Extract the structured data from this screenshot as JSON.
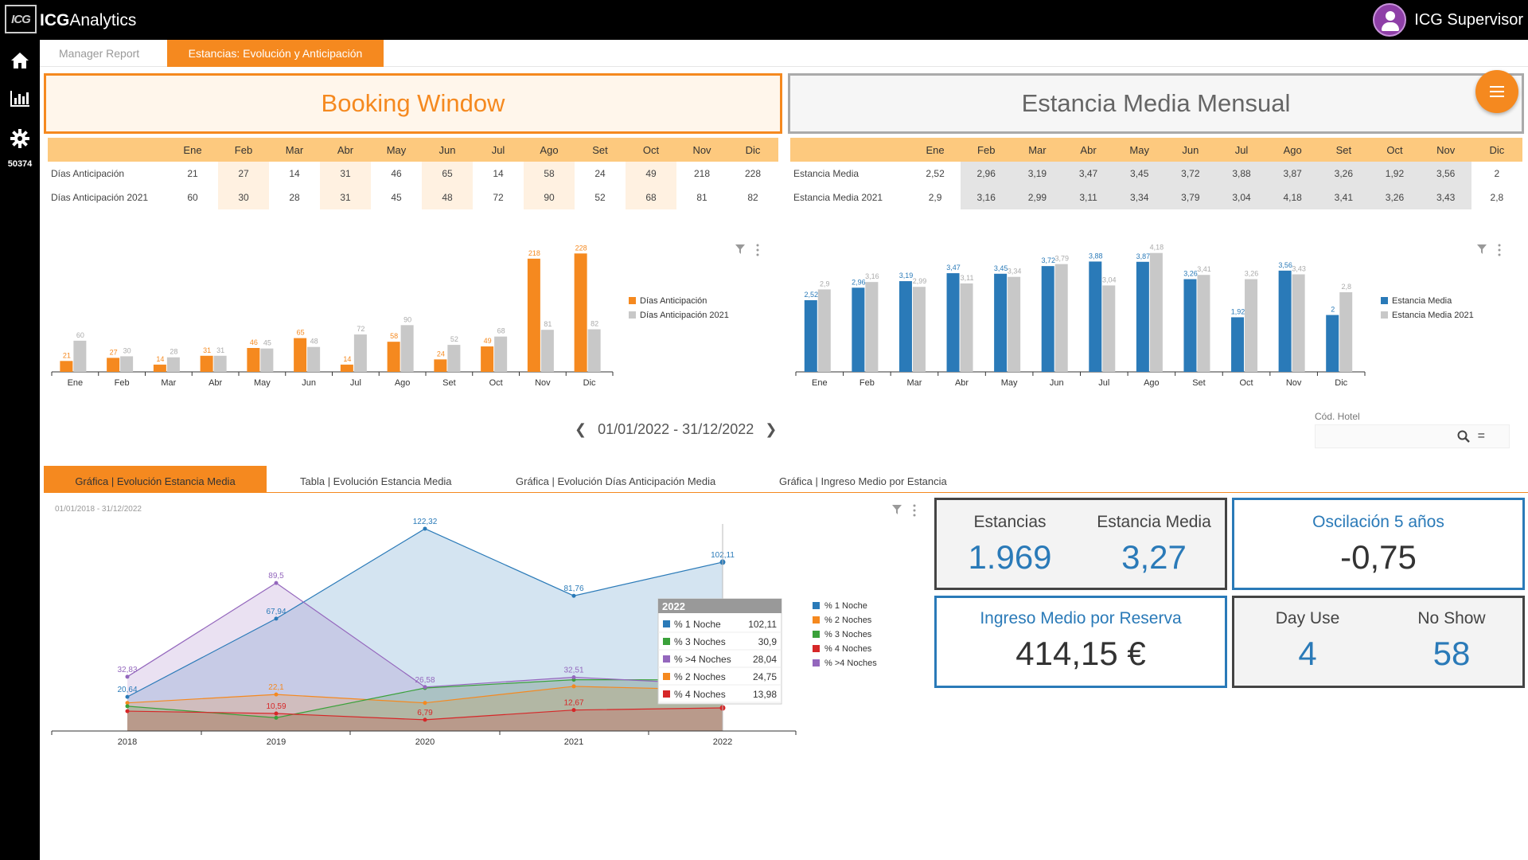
{
  "app": {
    "logo_text": "ICG",
    "title_bold": "ICG",
    "title_rest": "Analytics",
    "user": "ICG Supervisor",
    "side_number": "50374"
  },
  "tabs": [
    "Manager Report",
    "Estancias: Evolución y Anticipación"
  ],
  "booking_window": {
    "title": "Booking Window",
    "months": [
      "Ene",
      "Feb",
      "Mar",
      "Abr",
      "May",
      "Jun",
      "Jul",
      "Ago",
      "Set",
      "Oct",
      "Nov",
      "Dic"
    ],
    "rows": [
      {
        "label": "Días Anticipación",
        "values": [
          "21",
          "27",
          "14",
          "31",
          "46",
          "65",
          "14",
          "58",
          "24",
          "49",
          "218",
          "228"
        ]
      },
      {
        "label": "Días Anticipación 2021",
        "values": [
          "60",
          "30",
          "28",
          "31",
          "45",
          "48",
          "72",
          "90",
          "52",
          "68",
          "81",
          "82"
        ]
      }
    ]
  },
  "estancia_media": {
    "title": "Estancia Media Mensual",
    "months": [
      "Ene",
      "Feb",
      "Mar",
      "Abr",
      "May",
      "Jun",
      "Jul",
      "Ago",
      "Set",
      "Oct",
      "Nov",
      "Dic"
    ],
    "rows": [
      {
        "label": "Estancia Media",
        "values": [
          "2,52",
          "2,96",
          "3,19",
          "3,47",
          "3,45",
          "3,72",
          "3,88",
          "3,87",
          "3,26",
          "1,92",
          "3,56",
          "2"
        ]
      },
      {
        "label": "Estancia Media 2021",
        "values": [
          "2,9",
          "3,16",
          "2,99",
          "3,11",
          "3,34",
          "3,79",
          "3,04",
          "4,18",
          "3,41",
          "3,26",
          "3,43",
          "2,8"
        ]
      }
    ]
  },
  "date_range": "01/01/2022 - 31/12/2022",
  "cod_hotel": {
    "label": "Cód. Hotel",
    "eq": "="
  },
  "lower_tabs": [
    "Gráfica | Evolución Estancia Media",
    "Tabla | Evolución Estancia Media",
    "Gráfica | Evolución Días Anticipación Media",
    "Gráfica | Ingreso Medio por Estancia"
  ],
  "area_chart_range": "01/01/2018 - 31/12/2022",
  "tooltip": {
    "title": "2022",
    "rows": [
      {
        "label": "% 1 Noche",
        "value": "102,11",
        "color": "#2a7ab8"
      },
      {
        "label": "% 3 Noches",
        "value": "30,9",
        "color": "#3aa13a"
      },
      {
        "label": "% >4 Noches",
        "value": "28,04",
        "color": "#9467bd"
      },
      {
        "label": "% 2 Noches",
        "value": "24,75",
        "color": "#f5891f"
      },
      {
        "label": "% 4 Noches",
        "value": "13,98",
        "color": "#d62728"
      }
    ]
  },
  "kpis": {
    "estancias_label": "Estancias",
    "estancias_value": "1.969",
    "estancia_media_label": "Estancia Media",
    "estancia_media_value": "3,27",
    "oscilacion_label": "Oscilación 5 años",
    "oscilacion_value": "-0,75",
    "ingreso_label": "Ingreso Medio por Reserva",
    "ingreso_value": "414,15 €",
    "dayuse_label": "Day Use",
    "dayuse_value": "4",
    "noshow_label": "No Show",
    "noshow_value": "58"
  },
  "chart_data": [
    {
      "type": "bar",
      "categories": [
        "Ene",
        "Feb",
        "Mar",
        "Abr",
        "May",
        "Jun",
        "Jul",
        "Ago",
        "Set",
        "Oct",
        "Nov",
        "Dic"
      ],
      "series": [
        {
          "name": "Días Anticipación",
          "color": "#f5891f",
          "values": [
            21,
            27,
            14,
            31,
            46,
            65,
            14,
            58,
            24,
            49,
            218,
            228
          ]
        },
        {
          "name": "Días Anticipación 2021",
          "color": "#c8c8c8",
          "values": [
            60,
            30,
            28,
            31,
            45,
            48,
            72,
            90,
            52,
            68,
            81,
            82
          ]
        }
      ],
      "ylim": [
        0,
        230
      ],
      "legend": "right"
    },
    {
      "type": "bar",
      "categories": [
        "Ene",
        "Feb",
        "Mar",
        "Abr",
        "May",
        "Jun",
        "Jul",
        "Ago",
        "Set",
        "Oct",
        "Nov",
        "Dic"
      ],
      "series": [
        {
          "name": "Estancia Media",
          "color": "#2a7ab8",
          "values": [
            2.52,
            2.96,
            3.19,
            3.47,
            3.45,
            3.72,
            3.88,
            3.87,
            3.26,
            1.92,
            3.56,
            2
          ]
        },
        {
          "name": "Estancia Media 2021",
          "color": "#c8c8c8",
          "values": [
            2.9,
            3.16,
            2.99,
            3.11,
            3.34,
            3.79,
            3.04,
            4.18,
            3.41,
            3.26,
            3.43,
            2.8
          ]
        }
      ],
      "ylim": [
        0,
        4.2
      ],
      "legend": "right"
    },
    {
      "type": "area",
      "x": [
        "2018",
        "2019",
        "2020",
        "2021",
        "2022"
      ],
      "series": [
        {
          "name": "% 1 Noche",
          "color": "#2a7ab8",
          "values": [
            20.64,
            67.94,
            122.32,
            81.76,
            102.11
          ]
        },
        {
          "name": "% 2 Noches",
          "color": "#f5891f",
          "values": [
            17,
            22.1,
            17,
            27,
            24.75
          ]
        },
        {
          "name": "% 3 Noches",
          "color": "#3aa13a",
          "values": [
            15,
            8,
            26,
            31,
            30.9
          ]
        },
        {
          "name": "% 4 Noches",
          "color": "#d62728",
          "values": [
            12,
            10.59,
            6.79,
            12.67,
            13.98
          ]
        },
        {
          "name": "% >4 Noches",
          "color": "#9467bd",
          "values": [
            32.83,
            89.5,
            26.58,
            32.51,
            28.04
          ]
        }
      ],
      "labels": {
        "% 1 Noche": [
          "20,64",
          "67,94",
          "122,32",
          "81,76",
          "102,11"
        ],
        "% >4 Noches": [
          "32,83",
          "89,5",
          "26,58",
          "32,51",
          ""
        ],
        "% 2 Noches": [
          "",
          "22,1",
          "",
          "",
          ""
        ],
        "% 4 Noches": [
          "",
          "10,59",
          "6,79",
          "12,67",
          ""
        ]
      },
      "ylim": [
        0,
        130
      ],
      "legend": "right"
    }
  ]
}
